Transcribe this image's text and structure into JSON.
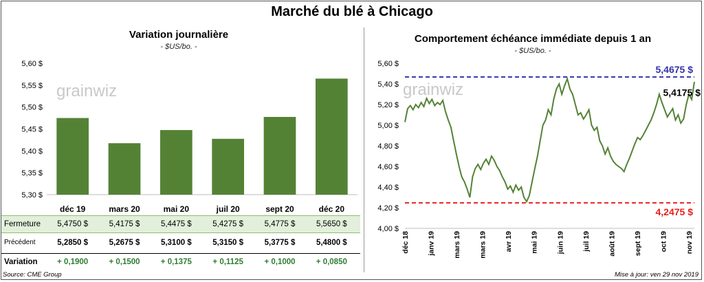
{
  "title": "Marché du blé à Chicago",
  "source": "Source: CME Group",
  "updated": "Mise à jour: ven 29 nov 2019",
  "watermark": "grainwiz",
  "colors": {
    "bar": "#548235",
    "line": "#548235",
    "high": "#3333aa",
    "low": "#e82020",
    "green_text": "#2e7d32"
  },
  "left_chart": {
    "title": "Variation journalière",
    "unit": "- $US/bo. -"
  },
  "right_chart": {
    "title": "Comportement  échéance immédiate depuis 1 an",
    "unit": "- $US/bo. -",
    "high_label": "5,4675 $",
    "low_label": "4,2475 $",
    "last_label": "5,4175 $"
  },
  "table": {
    "rows": [
      {
        "label": "Fermeture",
        "values": [
          "5,4750  $",
          "5,4175  $",
          "5,4475  $",
          "5,4275  $",
          "5,4775  $",
          "5,5650  $"
        ]
      },
      {
        "label": "Précédent",
        "values": [
          "5,2850  $",
          "5,2675  $",
          "5,3100  $",
          "5,3150  $",
          "5,3775  $",
          "5,4800  $"
        ]
      },
      {
        "label": "Variation",
        "values": [
          "+ 0,1900",
          "+ 0,1500",
          "+ 0,1375",
          "+ 0,1125",
          "+ 0,1000",
          "+ 0,0850"
        ]
      }
    ]
  },
  "chart_data": [
    {
      "type": "bar",
      "title": "Variation journalière",
      "categories": [
        "déc 19",
        "mars 20",
        "mai 20",
        "juil 20",
        "sept 20",
        "déc 20"
      ],
      "values": [
        5.475,
        5.4175,
        5.4475,
        5.4275,
        5.4775,
        5.565
      ],
      "ylim": [
        5.3,
        5.6
      ],
      "yticks": [
        5.3,
        5.35,
        5.4,
        5.45,
        5.5,
        5.55,
        5.6
      ],
      "ytick_labels": [
        "5,30 $",
        "5,35 $",
        "5,40 $",
        "5,45 $",
        "5,50 $",
        "5,55 $",
        "5,60 $"
      ],
      "grid": false
    },
    {
      "type": "line",
      "title": "Comportement  échéance immédiate depuis 1 an",
      "ylim": [
        4.0,
        5.6
      ],
      "yticks": [
        4.0,
        4.2,
        4.4,
        4.6,
        4.8,
        5.0,
        5.2,
        5.4,
        5.6
      ],
      "ytick_labels": [
        "4,00 $",
        "4,20 $",
        "4,40 $",
        "4,60 $",
        "4,80 $",
        "5,00 $",
        "5,20 $",
        "5,40 $",
        "5,60 $"
      ],
      "xtick_labels": [
        "déc 18",
        "janv 19",
        "mars 19",
        "mars 19",
        "avr 19",
        "mai 19",
        "juin 19",
        "juil 19",
        "août 19",
        "sept 19",
        "oct 19",
        "nov 19"
      ],
      "high": 5.4675,
      "low": 4.2475,
      "last": 5.4175,
      "values": [
        5.03,
        5.16,
        5.19,
        5.15,
        5.2,
        5.17,
        5.22,
        5.18,
        5.26,
        5.21,
        5.25,
        5.19,
        5.22,
        5.2,
        5.24,
        5.13,
        5.05,
        4.98,
        4.85,
        4.72,
        4.6,
        4.5,
        4.45,
        4.38,
        4.3,
        4.5,
        4.58,
        4.62,
        4.57,
        4.63,
        4.67,
        4.62,
        4.7,
        4.66,
        4.6,
        4.56,
        4.5,
        4.45,
        4.38,
        4.41,
        4.35,
        4.42,
        4.37,
        4.4,
        4.3,
        4.26,
        4.32,
        4.45,
        4.58,
        4.7,
        4.85,
        5.0,
        5.05,
        5.15,
        5.1,
        5.25,
        5.35,
        5.4,
        5.3,
        5.38,
        5.45,
        5.35,
        5.3,
        5.2,
        5.1,
        5.12,
        5.06,
        5.1,
        5.15,
        5.0,
        4.95,
        4.98,
        4.85,
        4.8,
        4.72,
        4.78,
        4.7,
        4.65,
        4.62,
        4.6,
        4.58,
        4.55,
        4.62,
        4.68,
        4.75,
        4.82,
        4.88,
        4.86,
        4.9,
        4.95,
        5.0,
        5.05,
        5.12,
        5.2,
        5.3,
        5.22,
        5.15,
        5.08,
        5.12,
        5.16,
        5.05,
        5.1,
        5.02,
        5.06,
        5.2,
        5.3,
        5.25,
        5.42
      ]
    }
  ]
}
